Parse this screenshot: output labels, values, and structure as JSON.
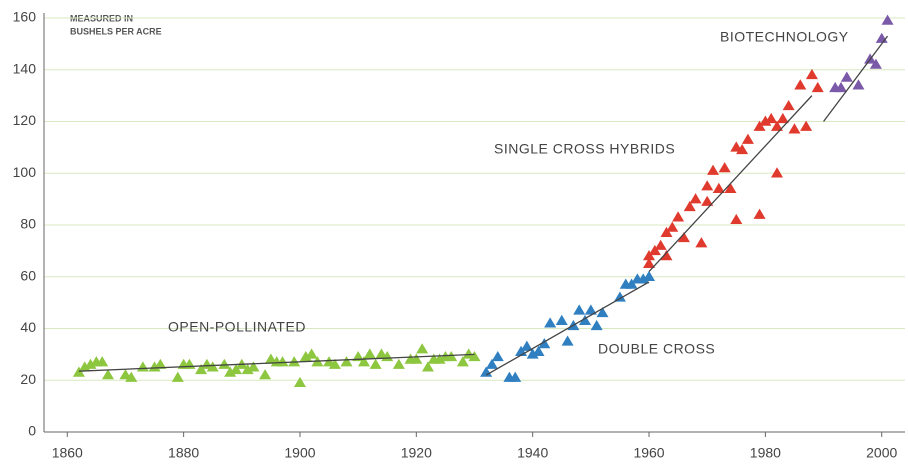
{
  "chart_data": {
    "type": "scatter",
    "note": [
      "MEASURED IN",
      "BUSHELS PER ACRE"
    ],
    "xlim": [
      1856,
      2004
    ],
    "xticks": [
      1860,
      1880,
      1900,
      1920,
      1940,
      1960,
      1980,
      2000
    ],
    "ylim": [
      0,
      160
    ],
    "yticks": [
      0,
      20,
      40,
      60,
      80,
      100,
      120,
      140,
      160
    ],
    "grid": true,
    "grid_color": "#d8e8c0",
    "series": [
      {
        "name": "OPEN-POLLINATED",
        "color": "#8dc63f",
        "x": [
          1862,
          1863,
          1864,
          1865,
          1866,
          1867,
          1870,
          1871,
          1873,
          1875,
          1876,
          1879,
          1880,
          1881,
          1883,
          1884,
          1885,
          1887,
          1888,
          1889,
          1890,
          1891,
          1892,
          1894,
          1895,
          1896,
          1897,
          1899,
          1900,
          1901,
          1902,
          1903,
          1905,
          1906,
          1908,
          1910,
          1911,
          1912,
          1913,
          1914,
          1915,
          1917,
          1919,
          1920,
          1921,
          1922,
          1923,
          1924,
          1925,
          1926,
          1928,
          1929,
          1930
        ],
        "values": [
          23,
          25,
          26,
          27,
          27,
          22,
          22,
          21,
          25,
          25,
          26,
          21,
          26,
          26,
          24,
          26,
          25,
          26,
          23,
          24,
          26,
          24,
          25,
          22,
          28,
          27,
          27,
          27,
          19,
          29,
          30,
          27,
          27,
          26,
          27,
          29,
          27,
          30,
          26,
          30,
          29,
          26,
          28,
          28,
          32,
          25,
          28,
          28,
          29,
          29,
          27,
          30,
          29
        ],
        "trend": {
          "x": [
            1862,
            1930
          ],
          "y": [
            23.5,
            30
          ]
        }
      },
      {
        "name": "DOUBLE CROSS",
        "color": "#2f7fc1",
        "x": [
          1932,
          1933,
          1934,
          1936,
          1937,
          1938,
          1939,
          1940,
          1941,
          1942,
          1943,
          1945,
          1946,
          1947,
          1948,
          1949,
          1950,
          1951,
          1952,
          1955,
          1956,
          1957,
          1958,
          1959,
          1960
        ],
        "values": [
          23,
          26,
          29,
          21,
          21,
          31,
          33,
          30,
          31,
          34,
          42,
          43,
          35,
          41,
          47,
          43,
          47,
          41,
          46,
          52,
          57,
          57,
          59,
          59,
          60
        ],
        "trend": {
          "x": [
            1932,
            1960
          ],
          "y": [
            22,
            58
          ]
        }
      },
      {
        "name": "SINGLE CROSS HYBRIDS",
        "color": "#e03a2e",
        "x": [
          1960,
          1960,
          1961,
          1962,
          1963,
          1963,
          1964,
          1965,
          1966,
          1967,
          1968,
          1969,
          1970,
          1970,
          1971,
          1972,
          1973,
          1974,
          1975,
          1975,
          1976,
          1977,
          1979,
          1979,
          1980,
          1981,
          1982,
          1982,
          1983,
          1984,
          1985,
          1986,
          1987,
          1988,
          1989
        ],
        "values": [
          65,
          68,
          70,
          72,
          68,
          77,
          79,
          83,
          75,
          87,
          90,
          73,
          89,
          95,
          101,
          94,
          102,
          94,
          110,
          82,
          109,
          113,
          84,
          118,
          120,
          121,
          100,
          118,
          121,
          126,
          117,
          134,
          118,
          138,
          133
        ],
        "trend": {
          "x": [
            1960,
            1988
          ],
          "y": [
            62,
            130
          ]
        }
      },
      {
        "name": "BIOTECHNOLOGY",
        "color": "#7a5aa8",
        "x": [
          1992,
          1993,
          1994,
          1996,
          1998,
          1999,
          2000,
          2001
        ],
        "values": [
          133,
          133,
          137,
          134,
          144,
          142,
          152,
          159
        ],
        "trend": {
          "x": [
            1990,
            2001
          ],
          "y": [
            120,
            153
          ]
        }
      }
    ]
  }
}
